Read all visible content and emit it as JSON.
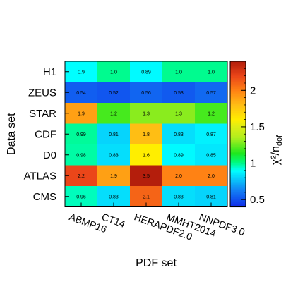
{
  "chart_data": {
    "type": "heatmap",
    "xlabel": "PDF set",
    "ylabel": "Data set",
    "colorbar_label": "χ²/n_dof",
    "columns": [
      "ABMP16",
      "CT14",
      "HERAPDF2.0",
      "MMHT2014",
      "NNPDF3.0"
    ],
    "rows": [
      "H1",
      "ZEUS",
      "STAR",
      "CDF",
      "D0",
      "ATLAS",
      "CMS"
    ],
    "values": [
      [
        0.9,
        1.0,
        0.89,
        1.0,
        1.0
      ],
      [
        0.54,
        0.52,
        0.56,
        0.53,
        0.57
      ],
      [
        1.9,
        1.2,
        1.3,
        1.3,
        1.2
      ],
      [
        0.99,
        0.81,
        1.8,
        0.83,
        0.87
      ],
      [
        0.98,
        0.83,
        1.6,
        0.89,
        0.85
      ],
      [
        2.2,
        1.9,
        3.5,
        2.0,
        2.0
      ],
      [
        0.96,
        0.83,
        2.1,
        0.83,
        0.81
      ]
    ],
    "labels": [
      [
        "0.9",
        "1.0",
        "0.89",
        "1.0",
        "1.0"
      ],
      [
        "0.54",
        "0.52",
        "0.56",
        "0.53",
        "0.57"
      ],
      [
        "1.9",
        "1.2",
        "1.3",
        "1.3",
        "1.2"
      ],
      [
        "0.99",
        "0.81",
        "1.8",
        "0.83",
        "0.87"
      ],
      [
        "0.98",
        "0.83",
        "1.6",
        "0.89",
        "0.85"
      ],
      [
        "2.2",
        "1.9",
        "3.5",
        "2.0",
        "2.0"
      ],
      [
        "0.96",
        "0.83",
        "2.1",
        "0.83",
        "0.81"
      ]
    ],
    "color_range": [
      0.4,
      2.4
    ],
    "colorbar_ticks": [
      {
        "value": 0.5,
        "label": "0.5"
      },
      {
        "value": 1.0,
        "label": "1"
      },
      {
        "value": 1.5,
        "label": "1.5"
      },
      {
        "value": 2.0,
        "label": "2"
      }
    ]
  }
}
